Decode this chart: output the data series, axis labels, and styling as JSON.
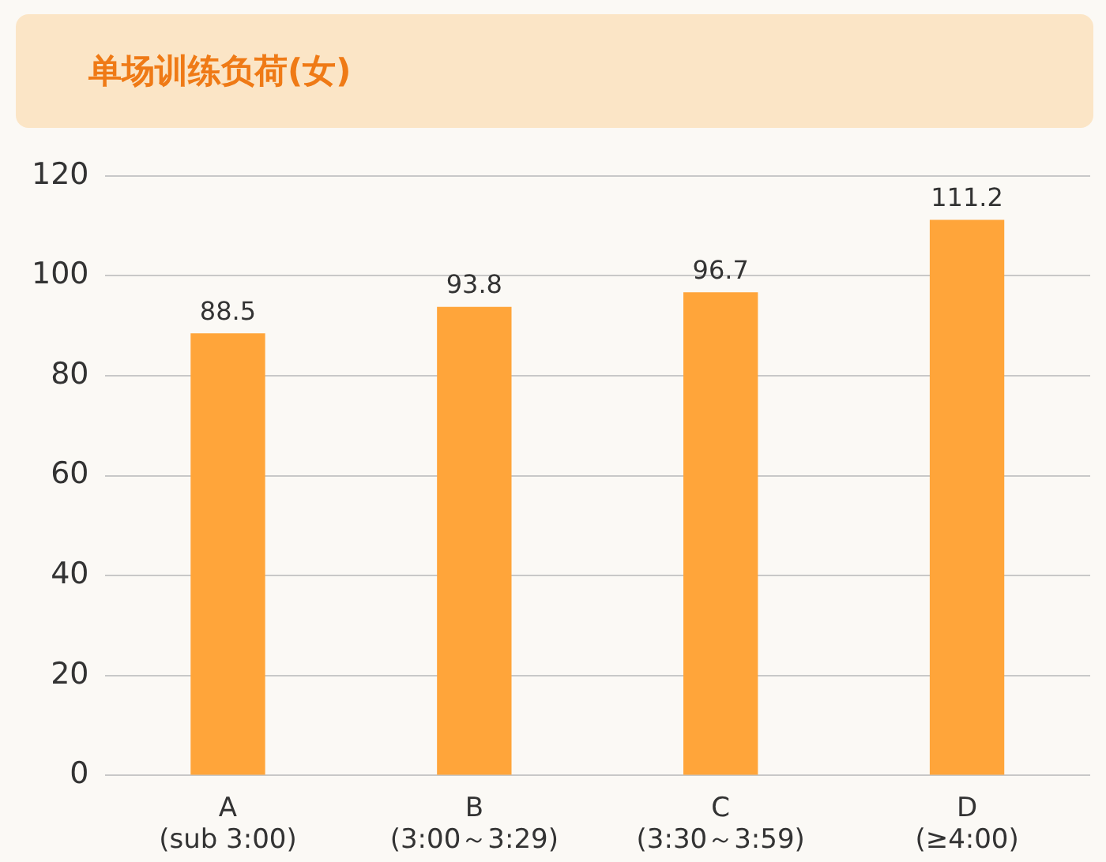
{
  "chart_data": {
    "type": "bar",
    "title": "单场训练负荷(女)",
    "categories": [
      "A\n(sub 3:00)",
      "B\n(3:00～3:29)",
      "C\n(3:30～3:59)",
      "D\n(≥4:00)"
    ],
    "values": [
      88.5,
      93.8,
      96.7,
      111.2
    ],
    "color": "#ffa53a",
    "ylim": [
      0,
      120
    ],
    "yticks": [
      0,
      20,
      40,
      60,
      80,
      100,
      120
    ],
    "grid": "y",
    "data_labels": true
  }
}
